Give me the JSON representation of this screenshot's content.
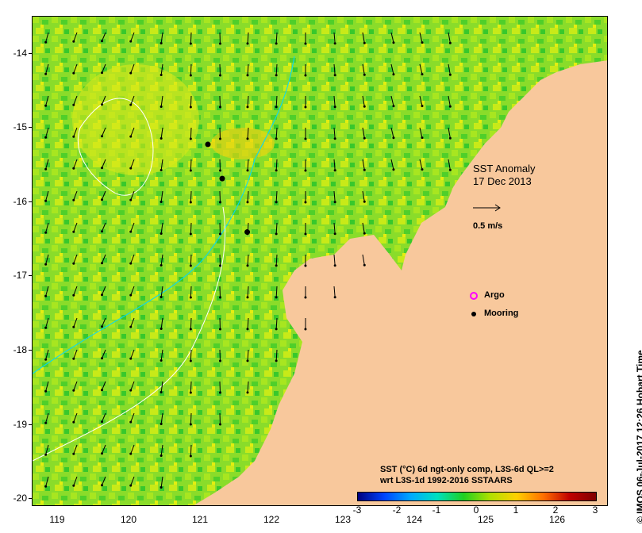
{
  "map": {
    "title": "SST Anomaly",
    "date": "17 Dec 2013",
    "vector_scale_label": "0.5 m/s",
    "legend": [
      {
        "label": "Argo",
        "marker": "open-circle",
        "color": "#ff00ff"
      },
      {
        "label": "Mooring",
        "marker": "filled-circle",
        "color": "#000000"
      }
    ],
    "description_line1": "SST (°C) 6d ngt-only comp, L3S-6d QL>=2",
    "description_line2": "wrt L3S-1d 1992-2016 SSTAARS",
    "credit": "© IMOS 06-Jul-2017 12:26 Hobart Time",
    "y_ticks": [
      "-14",
      "-15",
      "-16",
      "-17",
      "-18",
      "-19",
      "-20"
    ],
    "x_ticks": [
      "119",
      "120",
      "121",
      "122",
      "123",
      "124",
      "125",
      "126"
    ],
    "colorbar": {
      "ticks": [
        "-3",
        "-2",
        "-1",
        "0",
        "1",
        "2",
        "3"
      ],
      "colors": [
        "#000080",
        "#0044ff",
        "#00aaff",
        "#00e0c0",
        "#20d020",
        "#b0e000",
        "#ffd000",
        "#ff7000",
        "#c00000",
        "#800000"
      ]
    },
    "land_color": "#f8c89c",
    "moorings": [
      {
        "lon": 121.1,
        "lat": -15.22
      },
      {
        "lon": 121.3,
        "lat": -15.68
      },
      {
        "lon": 121.65,
        "lat": -16.4
      }
    ]
  }
}
